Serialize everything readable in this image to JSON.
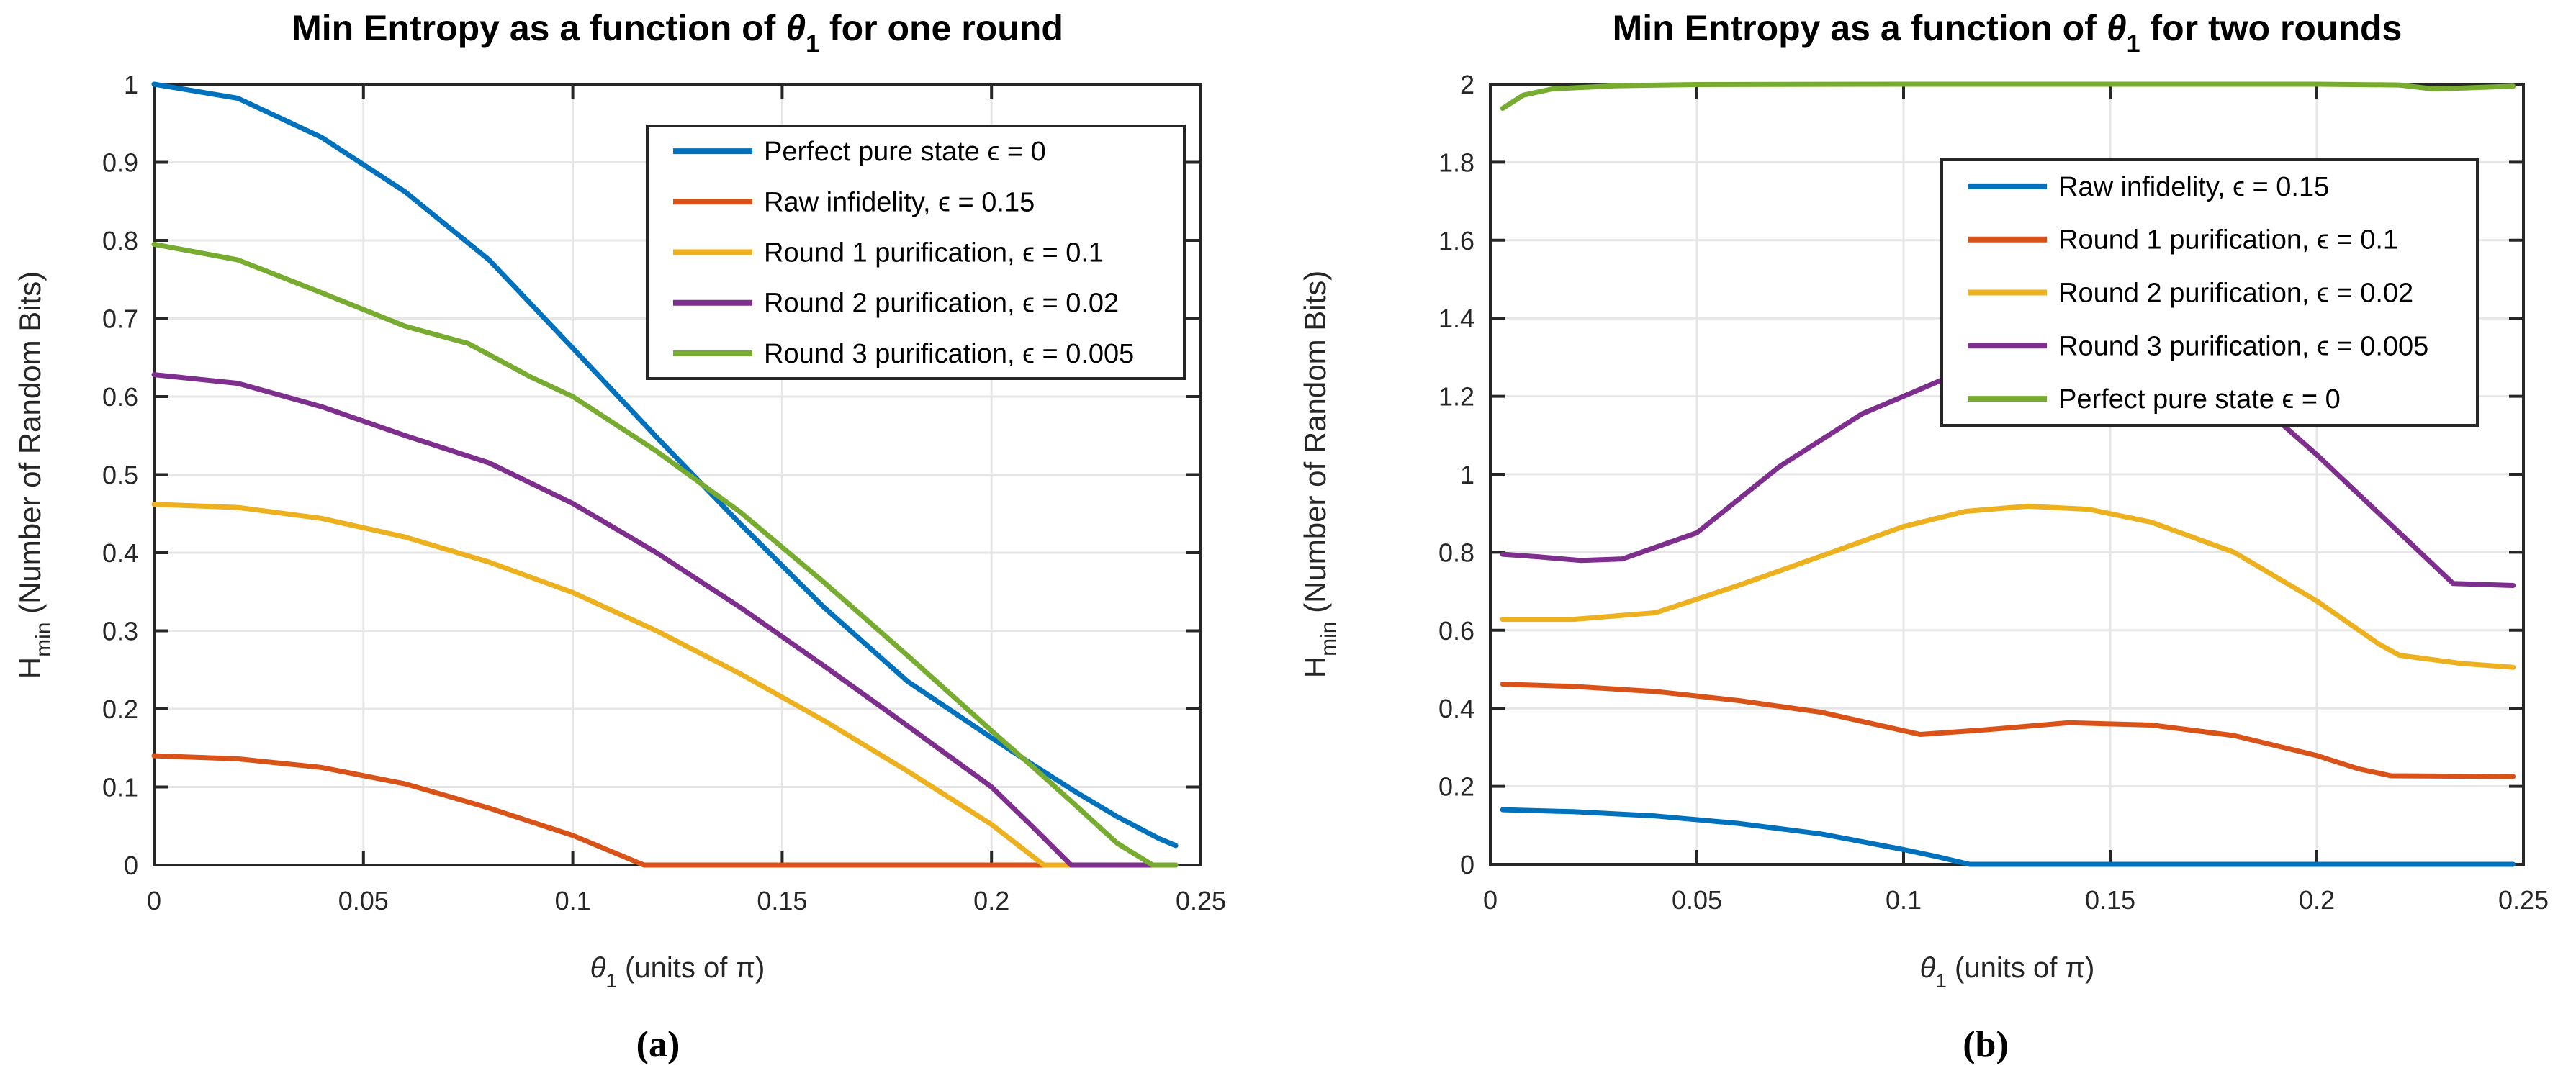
{
  "page": {
    "background": "#ffffff"
  },
  "captions": {
    "a": "(a)",
    "b": "(b)"
  },
  "palette": {
    "blue": "#0072BD",
    "orange": "#D95319",
    "yellow": "#EDB120",
    "purple": "#7E2F8E",
    "green": "#77AC30",
    "axis": "#262626",
    "grid": "#E6E6E6",
    "legend_bg": "#FFFFFF"
  },
  "chart_data": [
    {
      "type": "line",
      "title": {
        "pre": "Min Entropy as a function of ",
        "theta": "θ",
        "theta_sub": "1",
        "post": " for one round"
      },
      "xlabel": {
        "theta": "θ",
        "sub": "1",
        "rest": " (units of π)"
      },
      "ylabel": {
        "h": "H",
        "sub": "min",
        "rest": " (Number of Random Bits)"
      },
      "xlim": [
        0,
        0.25
      ],
      "ylim": [
        0,
        1
      ],
      "xticks": [
        "0",
        "0.05",
        "0.1",
        "0.15",
        "0.2",
        "0.25"
      ],
      "xtick_vals": [
        0,
        0.05,
        0.1,
        0.15,
        0.2,
        0.25
      ],
      "yticks": [
        "0",
        "0.1",
        "0.2",
        "0.3",
        "0.4",
        "0.5",
        "0.6",
        "0.7",
        "0.8",
        "0.9",
        "1"
      ],
      "ytick_vals": [
        0,
        0.1,
        0.2,
        0.3,
        0.4,
        0.5,
        0.6,
        0.7,
        0.8,
        0.9,
        1
      ],
      "grid": true,
      "legend_position": "northeast",
      "series": [
        {
          "name": "Perfect pure state ϵ = 0",
          "color": "#0072BD",
          "x": [
            0,
            0.02,
            0.04,
            0.06,
            0.08,
            0.1,
            0.12,
            0.14,
            0.16,
            0.18,
            0.2,
            0.21,
            0.22,
            0.23,
            0.24,
            0.244
          ],
          "y": [
            1.0,
            0.982,
            0.932,
            0.862,
            0.775,
            0.662,
            0.548,
            0.437,
            0.33,
            0.235,
            0.163,
            0.128,
            0.094,
            0.062,
            0.034,
            0.025
          ]
        },
        {
          "name": "Raw infidelity, ϵ = 0.15",
          "color": "#D95319",
          "x": [
            0,
            0.02,
            0.04,
            0.06,
            0.08,
            0.1,
            0.117,
            0.244
          ],
          "y": [
            0.14,
            0.136,
            0.125,
            0.104,
            0.073,
            0.038,
            0,
            0
          ]
        },
        {
          "name": "Round 1 purification, ϵ = 0.1",
          "color": "#EDB120",
          "x": [
            0,
            0.02,
            0.04,
            0.06,
            0.08,
            0.1,
            0.12,
            0.14,
            0.16,
            0.18,
            0.2,
            0.2125,
            0.244
          ],
          "y": [
            0.462,
            0.458,
            0.444,
            0.42,
            0.388,
            0.349,
            0.3,
            0.245,
            0.185,
            0.12,
            0.052,
            0,
            0
          ]
        },
        {
          "name": "Round 2 purification, ϵ = 0.02",
          "color": "#7E2F8E",
          "x": [
            0,
            0.02,
            0.04,
            0.06,
            0.08,
            0.1,
            0.12,
            0.14,
            0.16,
            0.18,
            0.2,
            0.21,
            0.219,
            0.244
          ],
          "y": [
            0.628,
            0.617,
            0.587,
            0.55,
            0.515,
            0.463,
            0.4,
            0.33,
            0.255,
            0.178,
            0.1,
            0.048,
            0,
            0
          ]
        },
        {
          "name": "Round 3 purification, ϵ = 0.005",
          "color": "#77AC30",
          "x": [
            0,
            0.02,
            0.04,
            0.06,
            0.075,
            0.09,
            0.1,
            0.12,
            0.14,
            0.16,
            0.18,
            0.2,
            0.21,
            0.22,
            0.23,
            0.2385,
            0.244
          ],
          "y": [
            0.795,
            0.775,
            0.733,
            0.69,
            0.668,
            0.625,
            0.6,
            0.53,
            0.452,
            0.362,
            0.268,
            0.172,
            0.125,
            0.077,
            0.028,
            0,
            0
          ]
        }
      ]
    },
    {
      "type": "line",
      "title": {
        "pre": "Min Entropy as a function of ",
        "theta": "θ",
        "theta_sub": "1",
        "post": " for two rounds"
      },
      "xlabel": {
        "theta": "θ",
        "sub": "1",
        "rest": " (units of π)"
      },
      "ylabel": {
        "h": "H",
        "sub": "min",
        "rest": " (Number of Random Bits)"
      },
      "xlim": [
        0,
        0.25
      ],
      "ylim": [
        0,
        2
      ],
      "xticks": [
        "0",
        "0.05",
        "0.1",
        "0.15",
        "0.2",
        "0.25"
      ],
      "xtick_vals": [
        0,
        0.05,
        0.1,
        0.15,
        0.2,
        0.25
      ],
      "yticks": [
        "0",
        "0.2",
        "0.4",
        "0.6",
        "0.8",
        "1",
        "1.2",
        "1.4",
        "1.6",
        "1.8",
        "2"
      ],
      "ytick_vals": [
        0,
        0.2,
        0.4,
        0.6,
        0.8,
        1,
        1.2,
        1.4,
        1.6,
        1.8,
        2
      ],
      "grid": true,
      "legend_position": "northeast",
      "series": [
        {
          "name": "Raw infidelity, ϵ = 0.15",
          "color": "#0072BD",
          "x": [
            0.003,
            0.02,
            0.04,
            0.06,
            0.08,
            0.1,
            0.108,
            0.116,
            0.2475
          ],
          "y": [
            0.14,
            0.135,
            0.124,
            0.105,
            0.078,
            0.038,
            0.02,
            0,
            0
          ]
        },
        {
          "name": "Round 1 purification, ϵ = 0.1",
          "color": "#D95319",
          "x": [
            0.003,
            0.02,
            0.04,
            0.06,
            0.08,
            0.104,
            0.12,
            0.14,
            0.16,
            0.18,
            0.2,
            0.21,
            0.218,
            0.2475
          ],
          "y": [
            0.462,
            0.456,
            0.443,
            0.42,
            0.39,
            0.333,
            0.345,
            0.363,
            0.357,
            0.33,
            0.279,
            0.245,
            0.227,
            0.225
          ]
        },
        {
          "name": "Round 2 purification, ϵ = 0.02",
          "color": "#EDB120",
          "x": [
            0.003,
            0.02,
            0.04,
            0.06,
            0.08,
            0.1,
            0.115,
            0.13,
            0.145,
            0.16,
            0.18,
            0.2,
            0.215,
            0.22,
            0.235,
            0.2475
          ],
          "y": [
            0.628,
            0.628,
            0.645,
            0.715,
            0.79,
            0.866,
            0.905,
            0.918,
            0.91,
            0.877,
            0.8,
            0.675,
            0.565,
            0.536,
            0.515,
            0.505
          ]
        },
        {
          "name": "Round 3 purification, ϵ = 0.005",
          "color": "#7E2F8E",
          "x": [
            0.003,
            0.012,
            0.022,
            0.032,
            0.05,
            0.07,
            0.09,
            0.11,
            0.125,
            0.14,
            0.155,
            0.17,
            0.185,
            0.2,
            0.215,
            0.225,
            0.233,
            0.2475
          ],
          "y": [
            0.795,
            0.788,
            0.779,
            0.783,
            0.85,
            1.02,
            1.155,
            1.245,
            1.28,
            1.29,
            1.288,
            1.265,
            1.19,
            1.05,
            0.9,
            0.8,
            0.72,
            0.715
          ]
        },
        {
          "name": "Perfect pure state ϵ = 0",
          "color": "#77AC30",
          "x": [
            0.003,
            0.008,
            0.015,
            0.03,
            0.05,
            0.1,
            0.15,
            0.2,
            0.22,
            0.228,
            0.235,
            0.2475
          ],
          "y": [
            1.938,
            1.972,
            1.988,
            1.996,
            1.999,
            2.0,
            2.0,
            2.0,
            1.998,
            1.988,
            1.99,
            1.995
          ]
        }
      ]
    }
  ]
}
